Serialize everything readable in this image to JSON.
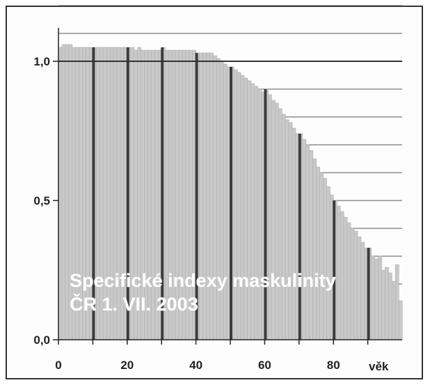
{
  "chart_data": {
    "type": "bar",
    "title": "Specifické indexy maskulinity",
    "subtitle": "ČR 1. VII. 2003",
    "xlabel": "věk",
    "ylabel": "",
    "xlim": [
      0,
      100
    ],
    "ylim": [
      0,
      1.2
    ],
    "x_ticks": [
      {
        "value": 0,
        "label": "0"
      },
      {
        "value": 20,
        "label": "20"
      },
      {
        "value": 40,
        "label": "40"
      },
      {
        "value": 60,
        "label": "60"
      },
      {
        "value": 80,
        "label": "80"
      }
    ],
    "y_ticks": [
      {
        "value": 0,
        "label": "0,0"
      },
      {
        "value": 0.5,
        "label": "0,5"
      },
      {
        "value": 1.0,
        "label": "1,0"
      }
    ],
    "grid": "horizontal lines every 0.1, drawn above 1.0 and behind the bars",
    "reference_line": 1.0,
    "decade_markers": [
      10,
      20,
      30,
      40,
      50,
      60,
      70,
      80,
      90
    ],
    "colors": {
      "bar": "#c9c9c9",
      "decade": "#3c3c3c",
      "grid": "#555555",
      "reference": "#333333"
    },
    "x": [
      0,
      1,
      2,
      3,
      4,
      5,
      6,
      7,
      8,
      9,
      10,
      11,
      12,
      13,
      14,
      15,
      16,
      17,
      18,
      19,
      20,
      21,
      22,
      23,
      24,
      25,
      26,
      27,
      28,
      29,
      30,
      31,
      32,
      33,
      34,
      35,
      36,
      37,
      38,
      39,
      40,
      41,
      42,
      43,
      44,
      45,
      46,
      47,
      48,
      49,
      50,
      51,
      52,
      53,
      54,
      55,
      56,
      57,
      58,
      59,
      60,
      61,
      62,
      63,
      64,
      65,
      66,
      67,
      68,
      69,
      70,
      71,
      72,
      73,
      74,
      75,
      76,
      77,
      78,
      79,
      80,
      81,
      82,
      83,
      84,
      85,
      86,
      87,
      88,
      89,
      90,
      91,
      92,
      93,
      94,
      95,
      96,
      97,
      98,
      99
    ],
    "values": [
      1.05,
      1.06,
      1.06,
      1.06,
      1.05,
      1.05,
      1.05,
      1.05,
      1.05,
      1.05,
      1.05,
      1.05,
      1.05,
      1.05,
      1.05,
      1.05,
      1.05,
      1.05,
      1.05,
      1.05,
      1.05,
      1.05,
      1.04,
      1.05,
      1.04,
      1.04,
      1.04,
      1.04,
      1.04,
      1.04,
      1.05,
      1.04,
      1.04,
      1.04,
      1.04,
      1.04,
      1.04,
      1.04,
      1.04,
      1.04,
      1.03,
      1.03,
      1.03,
      1.03,
      1.03,
      1.02,
      1.01,
      1.0,
      0.99,
      0.98,
      0.98,
      0.97,
      0.96,
      0.95,
      0.94,
      0.93,
      0.92,
      0.91,
      0.9,
      0.89,
      0.9,
      0.88,
      0.86,
      0.85,
      0.83,
      0.81,
      0.79,
      0.78,
      0.76,
      0.74,
      0.74,
      0.72,
      0.7,
      0.68,
      0.65,
      0.62,
      0.6,
      0.58,
      0.55,
      0.52,
      0.5,
      0.48,
      0.46,
      0.44,
      0.42,
      0.4,
      0.39,
      0.37,
      0.35,
      0.33,
      0.33,
      0.3,
      0.29,
      0.3,
      0.25,
      0.26,
      0.24,
      0.21,
      0.27,
      0.14
    ]
  }
}
